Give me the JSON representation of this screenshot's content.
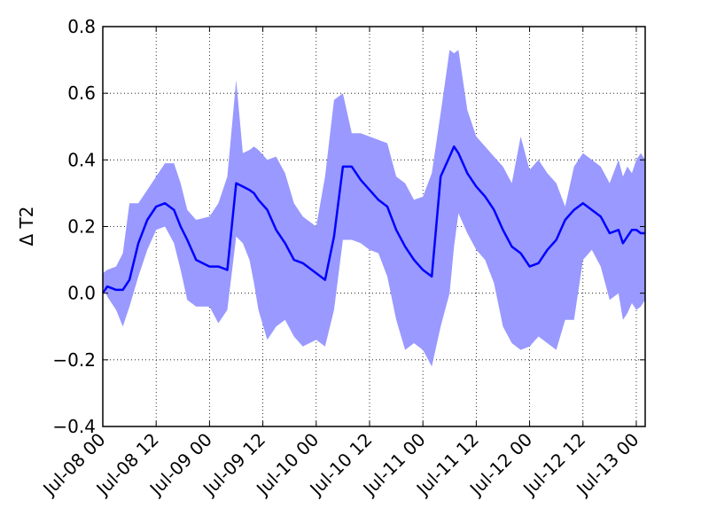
{
  "chart_data": {
    "type": "line",
    "title": "",
    "xlabel": "",
    "ylabel": "Δ T2",
    "ylim": [
      -0.4,
      0.8
    ],
    "yticks": [
      -0.4,
      -0.2,
      0.0,
      0.2,
      0.4,
      0.6,
      0.8
    ],
    "ytick_labels": [
      "−0.4",
      "−0.2",
      "0.0",
      "0.2",
      "0.4",
      "0.6",
      "0.8"
    ],
    "xlim": [
      "2015-07-08 00:00",
      "2015-07-13 02:00"
    ],
    "xticks": [
      "2015-07-08 00:00",
      "2015-07-08 12:00",
      "2015-07-09 00:00",
      "2015-07-09 12:00",
      "2015-07-10 00:00",
      "2015-07-10 12:00",
      "2015-07-11 00:00",
      "2015-07-11 12:00",
      "2015-07-12 00:00",
      "2015-07-12 12:00",
      "2015-07-13 00:00"
    ],
    "xtick_labels": [
      "Jul-08 00",
      "Jul-08 12",
      "Jul-09 00",
      "Jul-09 12",
      "Jul-10 00",
      "Jul-10 12",
      "Jul-11 00",
      "Jul-11 12",
      "Jul-12 00",
      "Jul-12 12",
      "Jul-13 00"
    ],
    "grid": true,
    "colors": {
      "line": "#0000ff",
      "band": "#9999ff"
    },
    "series": [
      {
        "x": [
          "2015-07-08 00:00",
          "2015-07-08 01:00",
          "2015-07-08 03:00",
          "2015-07-08 04:30",
          "2015-07-08 06:00",
          "2015-07-08 08:00",
          "2015-07-08 10:00",
          "2015-07-08 12:00",
          "2015-07-08 14:00",
          "2015-07-08 16:00",
          "2015-07-08 17:30",
          "2015-07-08 19:00",
          "2015-07-08 21:00",
          "2015-07-09 00:00",
          "2015-07-09 02:00",
          "2015-07-09 04:00",
          "2015-07-09 06:00",
          "2015-07-09 07:30",
          "2015-07-09 09:00",
          "2015-07-09 10:00",
          "2015-07-09 11:00",
          "2015-07-09 13:00",
          "2015-07-09 15:00",
          "2015-07-09 17:00",
          "2015-07-09 19:00",
          "2015-07-09 21:00",
          "2015-07-10 00:00",
          "2015-07-10 02:00",
          "2015-07-10 04:00",
          "2015-07-10 06:00",
          "2015-07-10 08:00",
          "2015-07-10 10:00",
          "2015-07-10 12:00",
          "2015-07-10 14:00",
          "2015-07-10 16:00",
          "2015-07-10 18:00",
          "2015-07-10 20:00",
          "2015-07-10 22:00",
          "2015-07-11 00:00",
          "2015-07-11 02:00",
          "2015-07-11 04:00",
          "2015-07-11 06:00",
          "2015-07-11 07:00",
          "2015-07-11 08:00",
          "2015-07-11 10:00",
          "2015-07-11 12:00",
          "2015-07-11 14:00",
          "2015-07-11 16:00",
          "2015-07-11 18:00",
          "2015-07-11 20:00",
          "2015-07-11 22:00",
          "2015-07-12 00:00",
          "2015-07-12 02:00",
          "2015-07-12 04:00",
          "2015-07-12 06:00",
          "2015-07-12 08:00",
          "2015-07-12 10:00",
          "2015-07-12 12:00",
          "2015-07-12 14:00",
          "2015-07-12 16:00",
          "2015-07-12 18:00",
          "2015-07-12 20:00",
          "2015-07-12 21:00",
          "2015-07-12 22:00",
          "2015-07-12 23:00",
          "2015-07-13 00:00",
          "2015-07-13 01:00",
          "2015-07-13 02:00"
        ],
        "values": [
          0.0,
          0.02,
          0.01,
          0.01,
          0.04,
          0.15,
          0.22,
          0.26,
          0.27,
          0.25,
          0.2,
          0.16,
          0.1,
          0.08,
          0.08,
          0.07,
          0.33,
          0.32,
          0.31,
          0.3,
          0.28,
          0.25,
          0.19,
          0.15,
          0.1,
          0.09,
          0.06,
          0.04,
          0.17,
          0.38,
          0.38,
          0.34,
          0.31,
          0.28,
          0.26,
          0.19,
          0.14,
          0.1,
          0.07,
          0.05,
          0.35,
          0.41,
          0.44,
          0.42,
          0.36,
          0.32,
          0.29,
          0.25,
          0.19,
          0.14,
          0.12,
          0.08,
          0.09,
          0.13,
          0.16,
          0.22,
          0.25,
          0.27,
          0.25,
          0.23,
          0.18,
          0.19,
          0.15,
          0.17,
          0.19,
          0.19,
          0.18,
          0.18
        ],
        "lower": [
          0.02,
          -0.01,
          -0.05,
          -0.1,
          -0.04,
          0.05,
          0.13,
          0.19,
          0.2,
          0.15,
          0.07,
          -0.02,
          -0.04,
          -0.04,
          -0.09,
          -0.05,
          0.17,
          0.15,
          0.1,
          0.03,
          -0.05,
          -0.14,
          -0.1,
          -0.08,
          -0.13,
          -0.16,
          -0.14,
          -0.16,
          -0.05,
          0.16,
          0.16,
          0.15,
          0.13,
          0.12,
          0.05,
          -0.08,
          -0.17,
          -0.15,
          -0.17,
          -0.22,
          -0.1,
          0.0,
          0.14,
          0.24,
          0.18,
          0.13,
          0.1,
          0.03,
          -0.1,
          -0.15,
          -0.17,
          -0.16,
          -0.13,
          -0.15,
          -0.17,
          -0.08,
          -0.08,
          0.1,
          0.13,
          0.08,
          -0.02,
          0.0,
          -0.08,
          -0.06,
          -0.03,
          -0.05,
          -0.04,
          -0.02
        ],
        "upper": [
          0.06,
          0.07,
          0.08,
          0.12,
          0.27,
          0.27,
          0.31,
          0.35,
          0.39,
          0.39,
          0.33,
          0.25,
          0.22,
          0.23,
          0.27,
          0.35,
          0.64,
          0.42,
          0.43,
          0.44,
          0.43,
          0.4,
          0.41,
          0.36,
          0.27,
          0.23,
          0.2,
          0.35,
          0.58,
          0.6,
          0.48,
          0.48,
          0.47,
          0.46,
          0.45,
          0.35,
          0.33,
          0.28,
          0.29,
          0.36,
          0.54,
          0.73,
          0.72,
          0.73,
          0.55,
          0.47,
          0.44,
          0.41,
          0.38,
          0.33,
          0.47,
          0.37,
          0.4,
          0.36,
          0.33,
          0.26,
          0.38,
          0.42,
          0.4,
          0.38,
          0.33,
          0.4,
          0.35,
          0.38,
          0.36,
          0.4,
          0.42,
          0.4
        ]
      }
    ]
  }
}
